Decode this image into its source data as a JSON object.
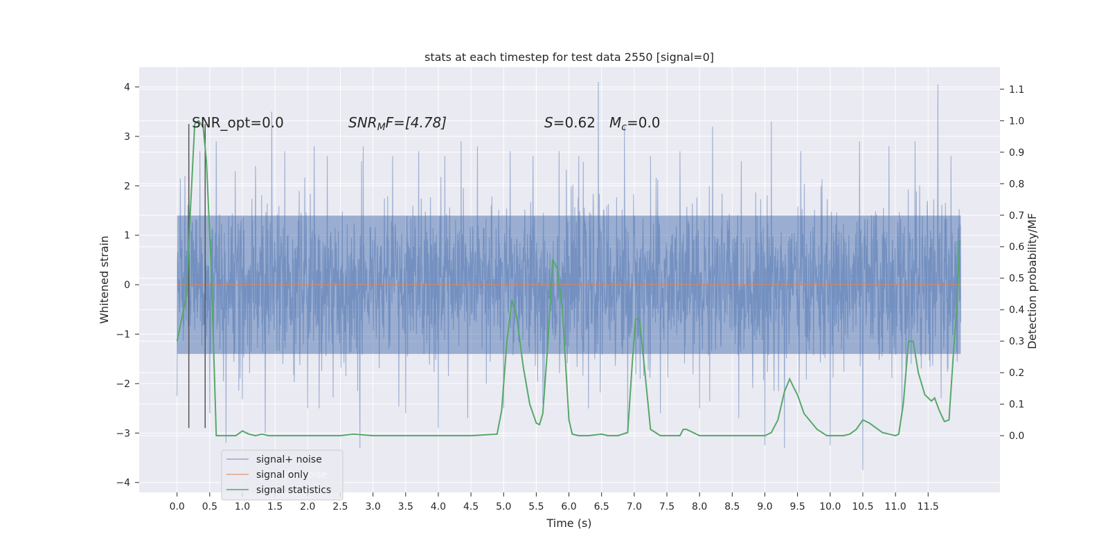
{
  "chart_data": {
    "type": "line",
    "title": "stats at each timestep for test data 2550 [signal=0]",
    "xlabel": "Time (s)",
    "ylabel": "Whitened strain",
    "ylabel_right": "Detection probability/MF",
    "xlim": [
      -0.58,
      12.6
    ],
    "ylim": [
      -4.2,
      4.4
    ],
    "ylim_right": [
      -0.18,
      1.17
    ],
    "x_ticks": [
      0.0,
      0.5,
      1.0,
      1.5,
      2.0,
      2.5,
      3.0,
      3.5,
      4.0,
      4.5,
      5.0,
      5.5,
      6.0,
      6.5,
      7.0,
      7.5,
      8.0,
      8.5,
      9.0,
      9.5,
      10.0,
      10.5,
      11.0,
      11.5
    ],
    "x_tick_labels": [
      "0.0",
      "0.5",
      "1.0",
      "1.5",
      "2.0",
      "2.5",
      "3.0",
      "3.5",
      "4.0",
      "4.5",
      "5.0",
      "5.5",
      "6.0",
      "6.5",
      "7.0",
      "7.5",
      "8.0",
      "8.5",
      "9.0",
      "9.5",
      "10.0",
      "10.5",
      "11.0",
      "11.5"
    ],
    "y_ticks": [
      -4,
      -3,
      -2,
      -1,
      0,
      1,
      2,
      3,
      4
    ],
    "y_tick_labels": [
      "−4",
      "−3",
      "−2",
      "−1",
      "0",
      "1",
      "2",
      "3",
      "4"
    ],
    "y_right_ticks": [
      0.0,
      0.1,
      0.2,
      0.3,
      0.4,
      0.5,
      0.6,
      0.7,
      0.8,
      0.9,
      1.0,
      1.1
    ],
    "y_right_tick_labels": [
      "0.0",
      "0.1",
      "0.2",
      "0.3",
      "0.4",
      "0.5",
      "0.6",
      "0.7",
      "0.8",
      "0.9",
      "1.0",
      "1.1"
    ],
    "grid": true,
    "legend_position": "lower-left",
    "series": [
      {
        "name": "signal+ noise",
        "color": "#4c72b0",
        "x_range": [
          0.0,
          12.0
        ],
        "typical_envelope": [
          -1.4,
          1.4
        ],
        "peaks": [
          {
            "x": 0.05,
            "y": 2.15
          },
          {
            "x": 0.12,
            "y": 2.2
          },
          {
            "x": 0.35,
            "y": 2.7
          },
          {
            "x": 0.6,
            "y": 2.9
          },
          {
            "x": 0.75,
            "y": 2.8
          },
          {
            "x": 1.2,
            "y": 2.4
          },
          {
            "x": 1.45,
            "y": 3.5
          },
          {
            "x": 1.65,
            "y": 2.7
          },
          {
            "x": 2.1,
            "y": 2.8
          },
          {
            "x": 2.3,
            "y": 2.6
          },
          {
            "x": 2.85,
            "y": 2.8
          },
          {
            "x": 3.3,
            "y": 2.6
          },
          {
            "x": 3.7,
            "y": 2.7
          },
          {
            "x": 4.1,
            "y": 2.6
          },
          {
            "x": 4.35,
            "y": 2.9
          },
          {
            "x": 4.6,
            "y": 2.8
          },
          {
            "x": 5.1,
            "y": 2.7
          },
          {
            "x": 5.45,
            "y": 2.6
          },
          {
            "x": 5.85,
            "y": 2.7
          },
          {
            "x": 6.15,
            "y": 2.6
          },
          {
            "x": 6.45,
            "y": 4.1
          },
          {
            "x": 6.85,
            "y": 3.2
          },
          {
            "x": 7.25,
            "y": 2.6
          },
          {
            "x": 7.7,
            "y": 2.7
          },
          {
            "x": 8.2,
            "y": 3.2
          },
          {
            "x": 8.6,
            "y": 2.7
          },
          {
            "x": 9.1,
            "y": 3.3
          },
          {
            "x": 9.55,
            "y": 2.7
          },
          {
            "x": 10.0,
            "y": 2.6
          },
          {
            "x": 10.45,
            "y": 2.9
          },
          {
            "x": 10.9,
            "y": 2.8
          },
          {
            "x": 11.3,
            "y": 2.9
          },
          {
            "x": 11.65,
            "y": 4.05
          },
          {
            "x": 11.85,
            "y": 2.6
          }
        ],
        "troughs": [
          {
            "x": 0.0,
            "y": -2.25
          },
          {
            "x": 0.5,
            "y": -2.6
          },
          {
            "x": 0.75,
            "y": -3.2
          },
          {
            "x": 1.35,
            "y": -3.0
          },
          {
            "x": 2.0,
            "y": -2.5
          },
          {
            "x": 2.8,
            "y": -3.3
          },
          {
            "x": 3.5,
            "y": -2.6
          },
          {
            "x": 4.0,
            "y": -2.9
          },
          {
            "x": 4.45,
            "y": -2.7
          },
          {
            "x": 5.0,
            "y": -2.5
          },
          {
            "x": 5.6,
            "y": -2.4
          },
          {
            "x": 6.3,
            "y": -2.5
          },
          {
            "x": 6.9,
            "y": -2.95
          },
          {
            "x": 7.4,
            "y": -2.6
          },
          {
            "x": 8.0,
            "y": -2.5
          },
          {
            "x": 8.6,
            "y": -2.7
          },
          {
            "x": 9.0,
            "y": -3.25
          },
          {
            "x": 9.3,
            "y": -3.3
          },
          {
            "x": 10.0,
            "y": -3.25
          },
          {
            "x": 10.5,
            "y": -3.75
          },
          {
            "x": 11.1,
            "y": -2.6
          },
          {
            "x": 11.7,
            "y": -2.3
          }
        ]
      },
      {
        "name": "signal only",
        "color": "#dd8452",
        "x": [
          0.0,
          12.0
        ],
        "y": [
          0.0,
          0.0
        ]
      },
      {
        "name": "signal statistics",
        "color": "#55a868",
        "axis": "right",
        "x": [
          0.0,
          0.1,
          0.15,
          0.2,
          0.27,
          0.33,
          0.4,
          0.45,
          0.52,
          0.6,
          0.7,
          0.8,
          0.9,
          1.0,
          1.1,
          1.2,
          1.3,
          1.4,
          1.5,
          2.0,
          2.5,
          2.7,
          3.0,
          3.5,
          4.0,
          4.5,
          4.9,
          4.97,
          5.05,
          5.13,
          5.2,
          5.3,
          5.4,
          5.45,
          5.5,
          5.55,
          5.6,
          5.68,
          5.75,
          5.82,
          5.9,
          6.0,
          6.05,
          6.15,
          6.3,
          6.5,
          6.6,
          6.75,
          6.9,
          6.97,
          7.02,
          7.08,
          7.15,
          7.25,
          7.4,
          7.6,
          7.7,
          7.75,
          7.8,
          8.0,
          8.3,
          8.6,
          8.8,
          9.0,
          9.1,
          9.2,
          9.3,
          9.38,
          9.45,
          9.5,
          9.6,
          9.8,
          9.95,
          10.2,
          10.3,
          10.4,
          10.5,
          10.6,
          10.8,
          11.0,
          11.05,
          11.12,
          11.2,
          11.27,
          11.35,
          11.45,
          11.55,
          11.6,
          11.67,
          11.75,
          11.82,
          11.9,
          11.95,
          11.98
        ],
        "y": [
          0.3,
          0.4,
          0.45,
          0.7,
          0.99,
          1.0,
          0.98,
          0.87,
          0.55,
          0.0,
          0.0,
          0.0,
          0.0,
          0.015,
          0.005,
          0.0,
          0.005,
          0.0,
          0.0,
          0.0,
          0.0,
          0.005,
          0.0,
          0.0,
          0.0,
          0.0,
          0.005,
          0.08,
          0.3,
          0.43,
          0.38,
          0.22,
          0.1,
          0.07,
          0.04,
          0.035,
          0.07,
          0.3,
          0.56,
          0.53,
          0.4,
          0.05,
          0.005,
          0.0,
          0.0,
          0.005,
          0.0,
          0.0,
          0.01,
          0.23,
          0.37,
          0.37,
          0.23,
          0.02,
          0.0,
          0.0,
          0.0,
          0.02,
          0.02,
          0.0,
          0.0,
          0.0,
          0.0,
          0.0,
          0.01,
          0.05,
          0.14,
          0.18,
          0.15,
          0.13,
          0.07,
          0.02,
          0.0,
          0.0,
          0.005,
          0.02,
          0.05,
          0.04,
          0.01,
          0.0,
          0.005,
          0.1,
          0.3,
          0.3,
          0.2,
          0.13,
          0.11,
          0.12,
          0.08,
          0.045,
          0.05,
          0.3,
          0.45,
          0.62
        ]
      }
    ],
    "vertical_markers": [
      {
        "x": 0.18,
        "y_top": 3.25,
        "y_bottom": -2.9
      },
      {
        "x": 0.43,
        "y_top": 3.25,
        "y_bottom": -2.9
      }
    ],
    "annotations": {
      "snr_opt": "SNR_opt=0.0",
      "snr_mf_base": "SNR",
      "snr_mf_sub": "M",
      "snr_mf_rest": "F=[4.78]",
      "s_var": "S",
      "s_value": "=0.62",
      "mc_var": "M",
      "mc_sub": "c",
      "mc_value": "=0.0",
      "shadow_legend": "ignal+ noise"
    },
    "colors": {
      "background": "#eaeaf2",
      "grid": "#ffffff",
      "marker_line": "#555555"
    }
  }
}
